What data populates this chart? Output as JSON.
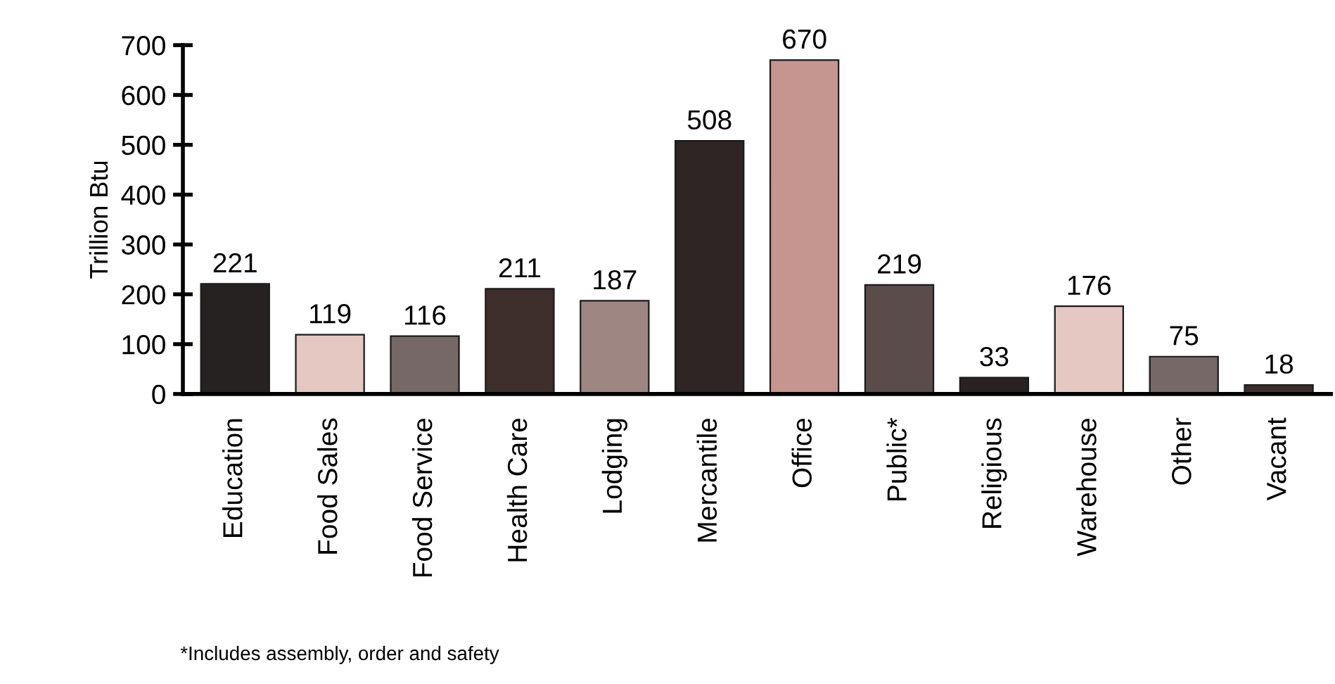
{
  "chart_data": {
    "type": "bar",
    "ylabel": "Trillion Btu",
    "categories": [
      "Education",
      "Food Sales",
      "Food Service",
      "Health Care",
      "Lodging",
      "Mercantile",
      "Office",
      "Public*",
      "Religious",
      "Warehouse",
      "Other",
      "Vacant"
    ],
    "values": [
      221,
      119,
      116,
      211,
      187,
      508,
      670,
      219,
      33,
      176,
      75,
      18
    ],
    "colors": [
      "#262222",
      "#e6c8c3",
      "#756866",
      "#3e2f2d",
      "#9e8682",
      "#2e2524",
      "#c4968f",
      "#5a4c4a",
      "#2a2222",
      "#e6c8c3",
      "#756866",
      "#3e2f2d"
    ],
    "ylim": [
      0,
      700
    ],
    "yticks": [
      0,
      100,
      200,
      300,
      400,
      500,
      600,
      700
    ],
    "grid": false,
    "legend": false,
    "data_labels": true,
    "annotations": [
      "*Includes assembly, order and safety"
    ]
  }
}
